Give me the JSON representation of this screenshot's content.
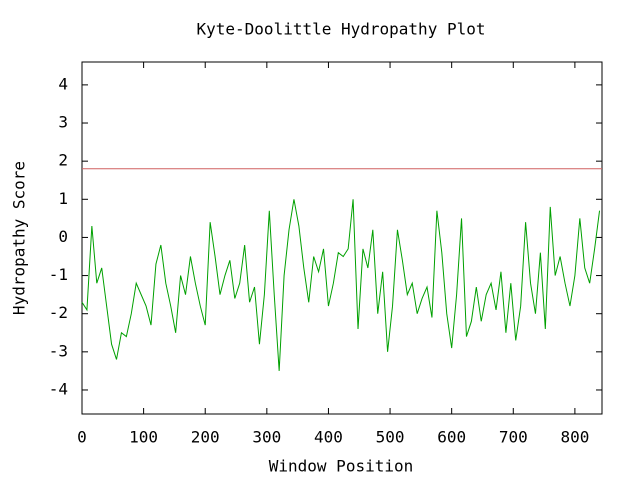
{
  "chart_data": {
    "type": "line",
    "title": "Kyte-Doolittle Hydropathy Plot",
    "x_label": "Window Position",
    "y_label": "Hydropathy Score",
    "x": [
      0,
      8,
      16,
      24,
      32,
      40,
      48,
      56,
      64,
      72,
      80,
      88,
      96,
      104,
      112,
      120,
      128,
      136,
      144,
      152,
      160,
      168,
      176,
      184,
      192,
      200,
      208,
      216,
      224,
      232,
      240,
      248,
      256,
      264,
      272,
      280,
      288,
      296,
      304,
      312,
      320,
      328,
      336,
      344,
      352,
      360,
      368,
      376,
      384,
      392,
      400,
      408,
      416,
      424,
      432,
      440,
      448,
      456,
      464,
      472,
      480,
      488,
      496,
      504,
      512,
      520,
      528,
      536,
      544,
      552,
      560,
      568,
      576,
      584,
      592,
      600,
      608,
      616,
      624,
      632,
      640,
      648,
      656,
      664,
      672,
      680,
      688,
      696,
      704,
      712,
      720,
      728,
      736,
      744,
      752,
      760,
      768,
      776,
      784,
      792,
      800,
      808,
      816,
      824,
      832,
      840
    ],
    "values": [
      -1.7,
      -1.9,
      0.3,
      -1.2,
      -0.8,
      -1.8,
      -2.8,
      -3.2,
      -2.5,
      -2.6,
      -2.0,
      -1.2,
      -1.5,
      -1.8,
      -2.3,
      -0.7,
      -0.2,
      -1.2,
      -1.8,
      -2.5,
      -1.0,
      -1.5,
      -0.5,
      -1.2,
      -1.8,
      -2.3,
      0.4,
      -0.5,
      -1.5,
      -1.0,
      -0.6,
      -1.6,
      -1.2,
      -0.2,
      -1.7,
      -1.3,
      -2.8,
      -1.5,
      0.7,
      -1.5,
      -3.5,
      -1.0,
      0.2,
      1.0,
      0.3,
      -0.8,
      -1.7,
      -0.5,
      -0.9,
      -0.3,
      -1.8,
      -1.2,
      -0.4,
      -0.5,
      -0.3,
      1.0,
      -2.4,
      -0.3,
      -0.8,
      0.2,
      -2.0,
      -0.9,
      -3.0,
      -1.8,
      0.2,
      -0.6,
      -1.5,
      -1.2,
      -2.0,
      -1.6,
      -1.3,
      -2.1,
      0.7,
      -0.4,
      -2.0,
      -2.9,
      -1.5,
      0.5,
      -2.6,
      -2.2,
      -1.3,
      -2.2,
      -1.5,
      -1.2,
      -1.9,
      -0.9,
      -2.5,
      -1.2,
      -2.7,
      -1.8,
      0.4,
      -1.2,
      -2.0,
      -0.4,
      -2.4,
      0.8,
      -1.0,
      -0.5,
      -1.2,
      -1.8,
      -1.0,
      0.5,
      -0.8,
      -1.2,
      -0.3,
      0.7
    ],
    "color": "#00a000",
    "threshold": 1.8,
    "threshold_color": "#d06060",
    "xlim": [
      0,
      844
    ],
    "xticks": [
      0,
      100,
      200,
      300,
      400,
      500,
      600,
      700,
      800
    ],
    "ylim": [
      -4.63,
      4.6
    ],
    "yticks": [
      4,
      3,
      2,
      1,
      0,
      -1,
      -2,
      -3,
      -4
    ]
  }
}
